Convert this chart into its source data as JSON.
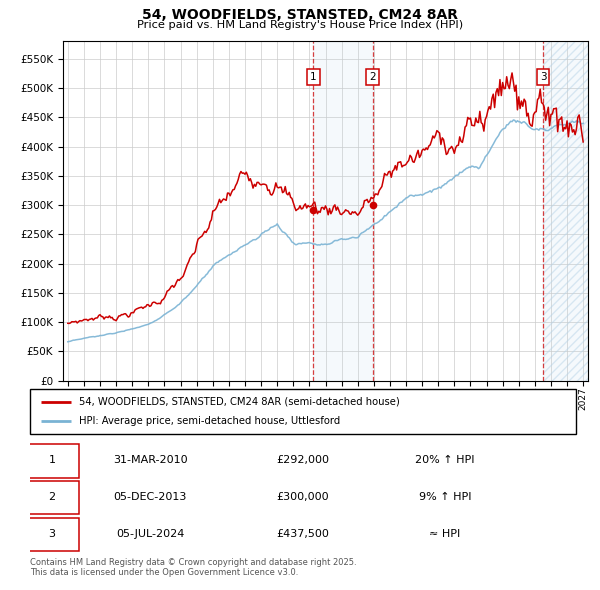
{
  "title": "54, WOODFIELDS, STANSTED, CM24 8AR",
  "subtitle": "Price paid vs. HM Land Registry's House Price Index (HPI)",
  "legend_line1": "54, WOODFIELDS, STANSTED, CM24 8AR (semi-detached house)",
  "legend_line2": "HPI: Average price, semi-detached house, Uttlesford",
  "transactions": [
    {
      "num": "1",
      "date": "31-MAR-2010",
      "price": "£292,000",
      "pct": "20% ↑ HPI",
      "year": 2010.25
    },
    {
      "num": "2",
      "date": "05-DEC-2013",
      "price": "£300,000",
      "pct": "9% ↑ HPI",
      "year": 2013.92
    },
    {
      "num": "3",
      "date": "05-JUL-2024",
      "price": "£437,500",
      "pct": "≈ HPI",
      "year": 2024.51
    }
  ],
  "t1_price": 292000,
  "t2_price": 300000,
  "t3_price": 437500,
  "footnote": "Contains HM Land Registry data © Crown copyright and database right 2025.\nThis data is licensed under the Open Government Licence v3.0.",
  "hpi_color": "#7ab3d4",
  "price_color": "#cc0000",
  "bg_color": "#ffffff",
  "grid_color": "#cccccc",
  "ylim": [
    0,
    580000
  ],
  "yticks": [
    0,
    50000,
    100000,
    150000,
    200000,
    250000,
    300000,
    350000,
    400000,
    450000,
    500000,
    550000
  ],
  "xlim_start": 1994.7,
  "xlim_end": 2027.3,
  "xticks": [
    1995,
    1996,
    1997,
    1998,
    1999,
    2000,
    2001,
    2002,
    2003,
    2004,
    2005,
    2006,
    2007,
    2008,
    2009,
    2010,
    2011,
    2012,
    2013,
    2014,
    2015,
    2016,
    2017,
    2018,
    2019,
    2020,
    2021,
    2022,
    2023,
    2024,
    2025,
    2026,
    2027
  ]
}
